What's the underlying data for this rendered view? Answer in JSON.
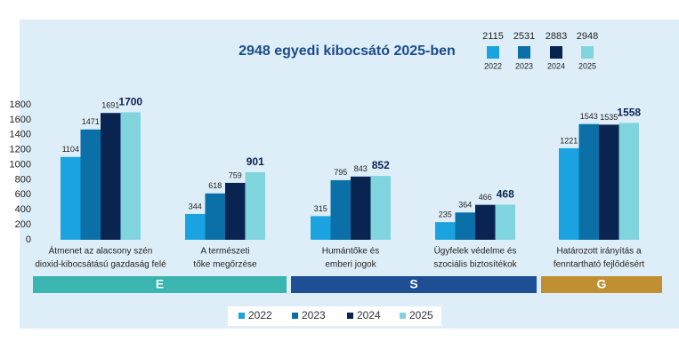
{
  "chart_data": {
    "type": "bar",
    "title": "2948 egyedi kibocsátó 2025-ben",
    "header_counts": [
      2115,
      2531,
      2883,
      2948
    ],
    "categories": [
      [
        "Átmenet az alacsony szén",
        "dioxid-kibocsátású gazdaság felé"
      ],
      [
        "A természeti",
        "tőke megőrzése"
      ],
      [
        "Humántőke és",
        "emberi jogok"
      ],
      [
        "Ügyfelek védelme és",
        "szociális biztosítékok"
      ],
      [
        "Határozott irányítás a",
        "fenntartható fejlődésért"
      ]
    ],
    "series": [
      {
        "name": "2022",
        "color": "#1aa3e0",
        "values": [
          1104,
          344,
          315,
          235,
          1221
        ]
      },
      {
        "name": "2023",
        "color": "#0b6fa8",
        "values": [
          1471,
          618,
          795,
          364,
          1543
        ]
      },
      {
        "name": "2024",
        "color": "#0a2452",
        "values": [
          1691,
          759,
          843,
          466,
          1535
        ]
      },
      {
        "name": "2025",
        "color": "#80d4dd",
        "values": [
          1700,
          901,
          852,
          468,
          1558
        ]
      }
    ],
    "ylim": [
      0,
      1800
    ],
    "yticks": [
      0,
      200,
      400,
      600,
      800,
      1000,
      1200,
      1400,
      1600,
      1800
    ],
    "grid": false,
    "pillars": [
      {
        "label": "E",
        "color": "#3ab5b0"
      },
      {
        "label": "S",
        "color": "#1e4f95"
      },
      {
        "label": "G",
        "color": "#c08f32"
      }
    ]
  }
}
